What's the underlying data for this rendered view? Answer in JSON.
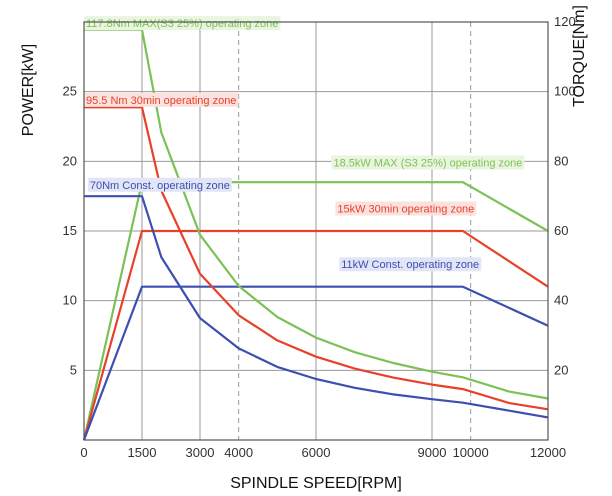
{
  "chart_data": {
    "type": "line",
    "xlabel": "SPINDLE SPEED[RPM]",
    "ylabel_left": "POWER[kW]",
    "ylabel_right": "TORQUE[Nm]",
    "xlim": [
      0,
      12000
    ],
    "ylim_left": [
      0,
      30
    ],
    "ylim_right": [
      0,
      120
    ],
    "x_ticks": [
      "0",
      "1500",
      "3000",
      "4000",
      "6000",
      "9000",
      "10000",
      "12000"
    ],
    "y_left_ticks": [
      "5",
      "10",
      "15",
      "20",
      "25"
    ],
    "y_right_ticks": [
      "20",
      "40",
      "60",
      "80",
      "100",
      "120"
    ],
    "series": [
      {
        "axis": "left",
        "color": "#7cc157",
        "values": [
          [
            0,
            0
          ],
          [
            1500,
            18.5
          ],
          [
            9800,
            18.5
          ],
          [
            12000,
            15
          ]
        ]
      },
      {
        "axis": "left",
        "color": "#e8412b",
        "values": [
          [
            0,
            0
          ],
          [
            1500,
            15
          ],
          [
            9800,
            15
          ],
          [
            12000,
            11
          ]
        ]
      },
      {
        "axis": "left",
        "color": "#3d4fb0",
        "values": [
          [
            0,
            0
          ],
          [
            1500,
            11
          ],
          [
            9800,
            11
          ],
          [
            12000,
            8.2
          ]
        ]
      },
      {
        "axis": "right",
        "color": "#7cc157",
        "values": [
          [
            0,
            117.8
          ],
          [
            1500,
            117.8
          ],
          [
            2000,
            88.3
          ],
          [
            3000,
            58.9
          ],
          [
            4000,
            44.2
          ],
          [
            5000,
            35.3
          ],
          [
            6000,
            29.4
          ],
          [
            7000,
            25.2
          ],
          [
            8000,
            22.1
          ],
          [
            9000,
            19.6
          ],
          [
            9800,
            18.0
          ],
          [
            11000,
            13.9
          ],
          [
            12000,
            11.9
          ]
        ]
      },
      {
        "axis": "right",
        "color": "#e8412b",
        "values": [
          [
            0,
            95.5
          ],
          [
            1500,
            95.5
          ],
          [
            2000,
            71.6
          ],
          [
            3000,
            47.7
          ],
          [
            4000,
            35.8
          ],
          [
            5000,
            28.6
          ],
          [
            6000,
            23.9
          ],
          [
            7000,
            20.5
          ],
          [
            8000,
            17.9
          ],
          [
            9000,
            15.9
          ],
          [
            9800,
            14.6
          ],
          [
            11000,
            10.6
          ],
          [
            12000,
            8.8
          ]
        ]
      },
      {
        "axis": "right",
        "color": "#3d4fb0",
        "values": [
          [
            0,
            70
          ],
          [
            1500,
            70
          ],
          [
            2000,
            52.5
          ],
          [
            3000,
            35.0
          ],
          [
            4000,
            26.3
          ],
          [
            5000,
            21.0
          ],
          [
            6000,
            17.5
          ],
          [
            7000,
            15.0
          ],
          [
            8000,
            13.1
          ],
          [
            9000,
            11.7
          ],
          [
            9800,
            10.7
          ],
          [
            11000,
            8.4
          ],
          [
            12000,
            6.5
          ]
        ]
      }
    ],
    "annotations": [
      {
        "text": "117.8Nm MAX(S3 25%) operating zone",
        "color": "#7cc157",
        "bg": "#eaf5e0",
        "x": 0,
        "y": 29.7,
        "axis": "left"
      },
      {
        "text": "95.5 Nm  30min operating zone",
        "color": "#e8412b",
        "bg": "#fbe2de",
        "x": 0,
        "y": 24.2,
        "axis": "left"
      },
      {
        "text": "18.5kW  MAX (S3 25%) operating zone",
        "color": "#7cc157",
        "bg": "#eaf5e0",
        "x": 6400,
        "y": 19.7,
        "axis": "left"
      },
      {
        "text": "70Nm Const. operating zone",
        "color": "#3d4fb0",
        "bg": "#e2e5f6",
        "x": 100,
        "y": 18.1,
        "axis": "left"
      },
      {
        "text": "15kW  30min operating zone",
        "color": "#e8412b",
        "bg": "#fbe2de",
        "x": 6500,
        "y": 16.4,
        "axis": "left"
      },
      {
        "text": "11kW Const. operating zone",
        "color": "#3d4fb0",
        "bg": "#e2e5f6",
        "x": 6600,
        "y": 12.4,
        "axis": "left"
      }
    ]
  }
}
